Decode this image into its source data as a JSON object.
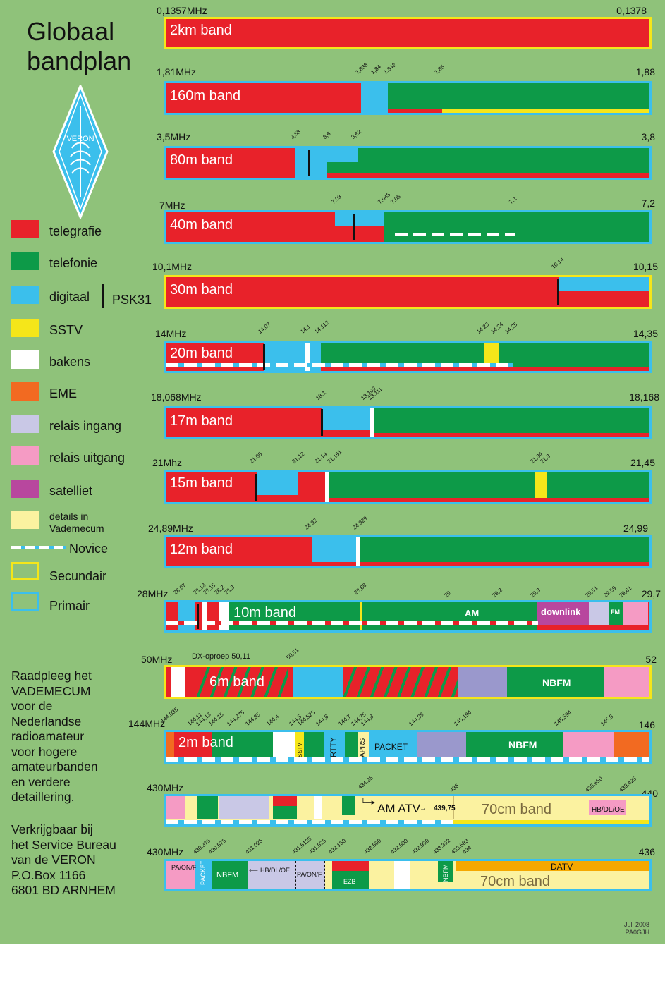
{
  "title": {
    "line1": "Globaal",
    "line2": "bandplan"
  },
  "logo": {
    "text": "VERON",
    "icon": "veron-diamond-logo"
  },
  "legend": [
    {
      "label": "telegrafie",
      "color": "#e8222a"
    },
    {
      "label": "telefonie",
      "color": "#0d9a48"
    },
    {
      "label": "digitaal",
      "color": "#3bbfec",
      "extra": "PSK31"
    },
    {
      "label": "SSTV",
      "color": "#f5e61a"
    },
    {
      "label": "bakens",
      "color": "#ffffff"
    },
    {
      "label": "EME",
      "color": "#f26a21"
    },
    {
      "label": "relais ingang",
      "color": "#c9c8e6"
    },
    {
      "label": "relais uitgang",
      "color": "#f59bc4"
    },
    {
      "label": "satelliet",
      "color": "#b8479e"
    },
    {
      "label": "details in Vademecum",
      "color": "#fbf2a0"
    },
    {
      "label": "Novice",
      "color": "#3bbfec"
    },
    {
      "label": "Secundair",
      "color": "#f5e61a"
    },
    {
      "label": "Primair",
      "color": "#3bbfec"
    }
  ],
  "side_text": {
    "lines1": [
      "Raadpleeg het",
      "VADEMECUM",
      "voor de",
      "Nederlandse",
      "radioamateur",
      "voor hogere",
      "amateurbanden",
      "en verdere",
      "detaillering."
    ],
    "lines2": [
      "Verkrijgbaar bij",
      "het Service Bureau",
      "van de VERON",
      "P.O.Box 1166",
      "6801 BD  ARNHEM"
    ]
  },
  "footer": {
    "date": "Juli 2008",
    "author": "PA0GJH"
  },
  "bands": [
    {
      "name": "2km band",
      "start": "0,1357MHz",
      "end": "0,1378",
      "ticks": []
    },
    {
      "name": "160m band",
      "start": "1,81MHz",
      "end": "1,88",
      "ticks": [
        "1,838",
        "1,84",
        "1,842",
        "1,85"
      ]
    },
    {
      "name": "80m band",
      "start": "3,5MHz",
      "end": "3,8",
      "ticks": [
        "3,58",
        "3,6",
        "3,62"
      ]
    },
    {
      "name": "40m band",
      "start": "7MHz",
      "end": "7,2",
      "ticks": [
        "7,03",
        "7,045",
        "7,05",
        "7,1"
      ]
    },
    {
      "name": "30m band",
      "start": "10,1MHz",
      "end": "10,15",
      "ticks": [
        "10,14"
      ]
    },
    {
      "name": "20m band",
      "start": "14MHz",
      "end": "14,35",
      "ticks": [
        "14,07",
        "14,1",
        "14,112",
        "14,23",
        "14,24",
        "14,25"
      ]
    },
    {
      "name": "17m band",
      "start": "18,068MHz",
      "end": "18,168",
      "ticks": [
        "18,1",
        "18,109",
        "18,111"
      ]
    },
    {
      "name": "15m band",
      "start": "21Mhz",
      "end": "21,45",
      "ticks": [
        "21,08",
        "21,12",
        "21,14",
        "21,151",
        "21,34",
        "21,3"
      ]
    },
    {
      "name": "12m band",
      "start": "24,89MHz",
      "end": "24,99",
      "ticks": [
        "24,92",
        "24,929"
      ]
    },
    {
      "name": "10m band",
      "start": "28MHz",
      "end": "29,7",
      "ticks": [
        "28,07",
        "28,12",
        "28,15",
        "28,2",
        "28,3",
        "28,68",
        "29",
        "29,2",
        "29,3",
        "29,51",
        "29,59",
        "29,61"
      ],
      "am": "AM",
      "downlink": "downlink",
      "fm": "FM"
    },
    {
      "name": "6m band",
      "start": "50MHz",
      "end": "52",
      "ticks": [
        "50,51"
      ],
      "dx": "DX-oproep 50,11",
      "nbfm": "NBFM"
    },
    {
      "name": "2m band",
      "start": "144MHz",
      "end": "146",
      "ticks": [
        "144,035",
        "144,11",
        "144,13",
        "144,15",
        "144,275",
        "144,35",
        "144,4",
        "144,5",
        "144,525",
        "144,6",
        "144,7",
        "144,75",
        "144,8",
        "144,99",
        "145,194",
        "145,594",
        "145,8"
      ],
      "sstv": "SSTV",
      "rtty": "RTTY",
      "aprs": "APRS",
      "packet": "PACKET",
      "nbfm": "NBFM"
    },
    {
      "name": "70cm band",
      "start": "430MHz",
      "end": "440",
      "ticks": [
        "434,25",
        "436",
        "438,650",
        "439,425"
      ],
      "amatv": "AM ATV",
      "amatv_freq": "439,75",
      "hb": "HB/DL/OE"
    },
    {
      "name": "70cm band",
      "start": "430MHz",
      "end": "436",
      "ticks": [
        "430,375",
        "430,575",
        "431,025",
        "431,6125",
        "431,825",
        "432,150",
        "432,500",
        "432,800",
        "432,990",
        "433,392",
        "433,583",
        "434"
      ],
      "paonf": "PA/ON/F",
      "packet": "PACKET",
      "nbfm": "NBFM",
      "hb": "HB/DL/OE",
      "paonf2": "PA/ON/F",
      "ezb": "EZB",
      "nbfm2": "NBFM",
      "datv": "DATV"
    }
  ]
}
